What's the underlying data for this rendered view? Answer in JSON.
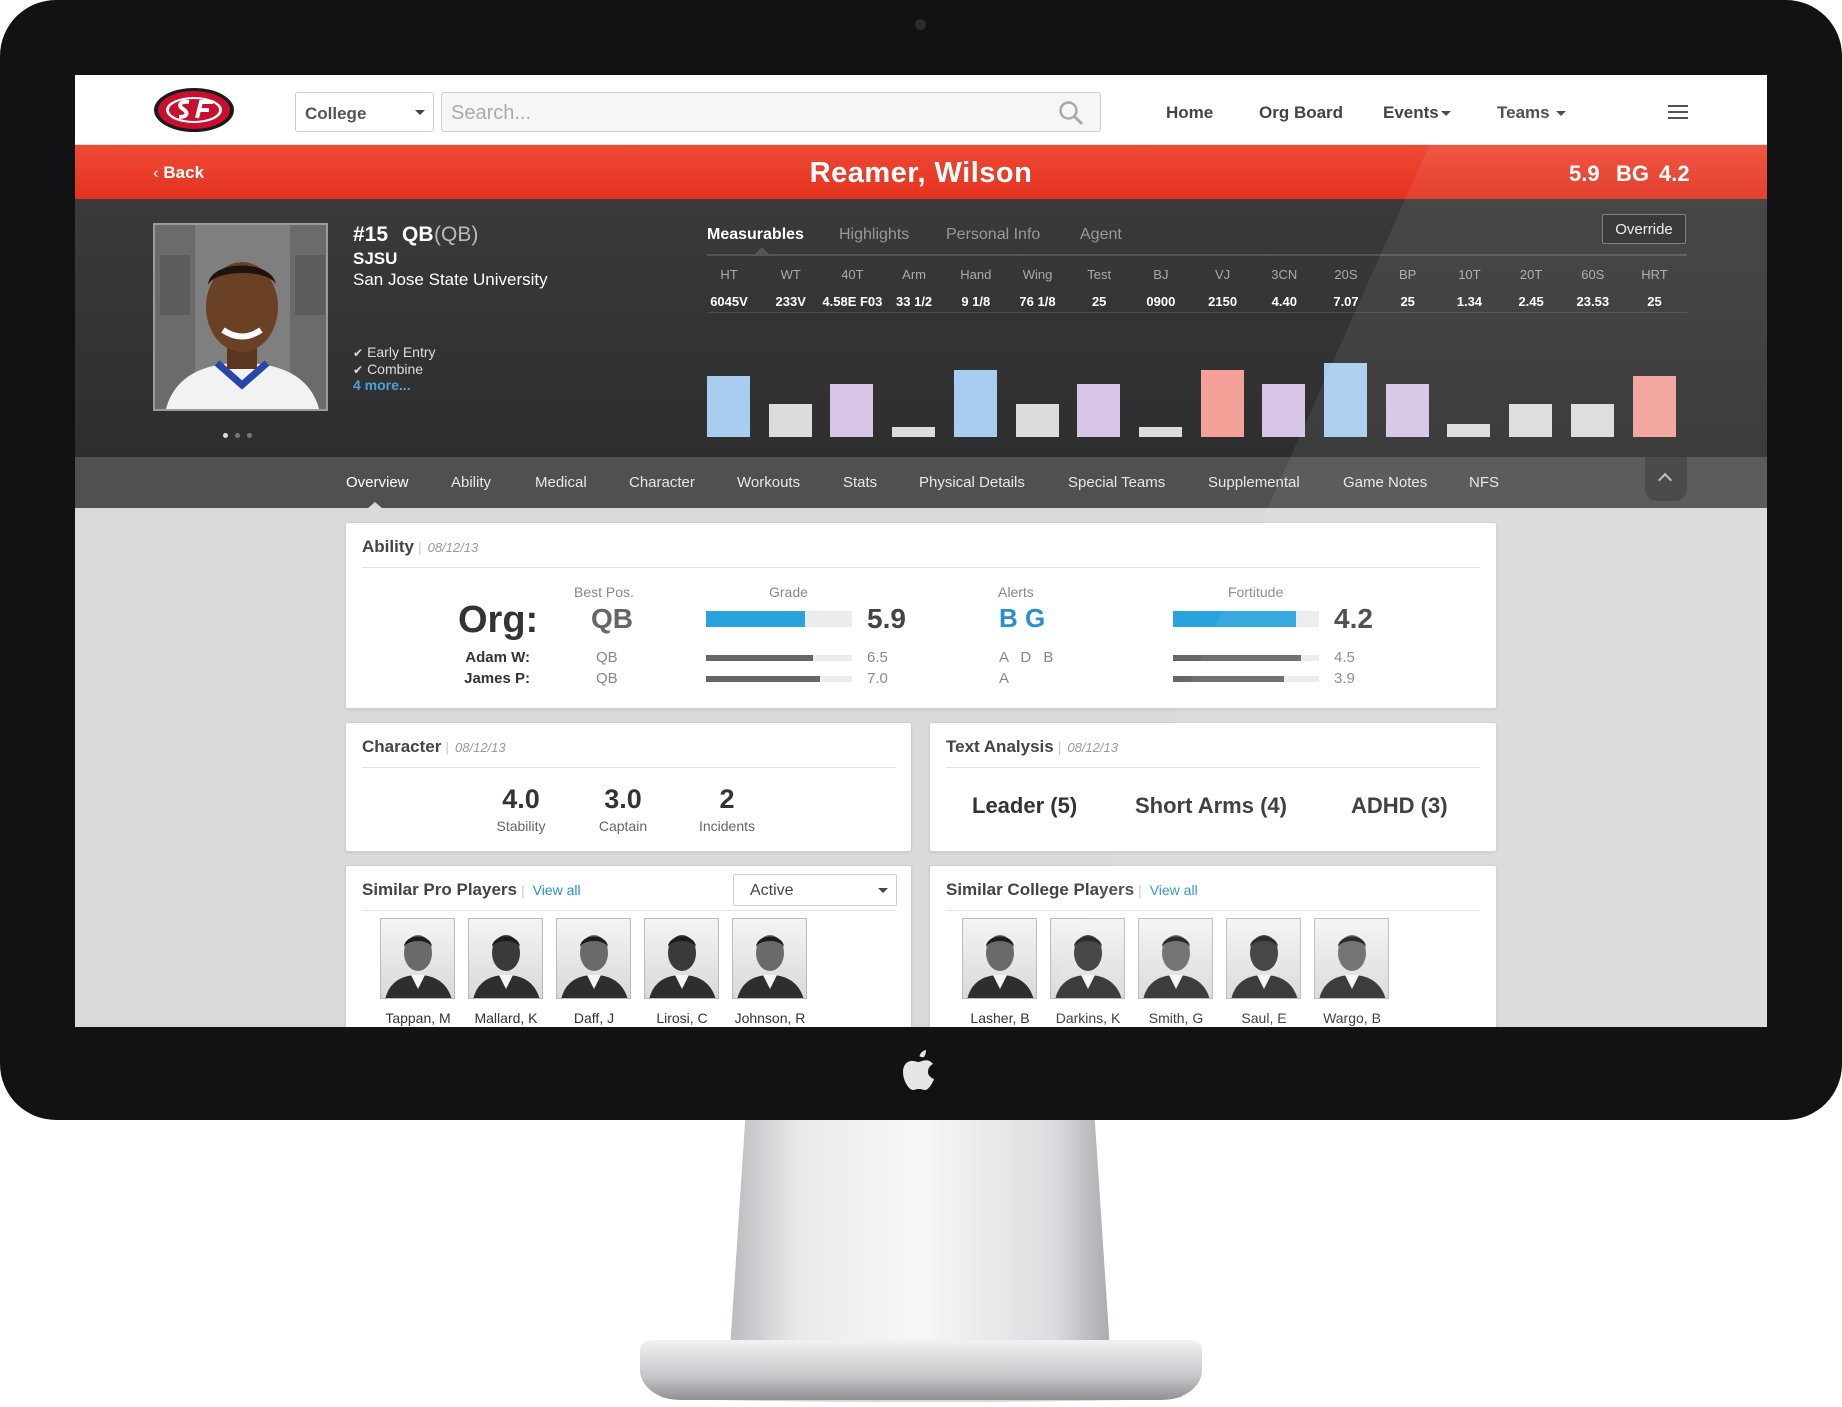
{
  "header": {
    "select": {
      "value": "College"
    },
    "search": {
      "placeholder": "Search..."
    },
    "nav": [
      "Home",
      "Org Board",
      "Events",
      "Teams"
    ]
  },
  "redbar": {
    "back": "Back",
    "player_name": "Reamer, Wilson",
    "grade": "5.9",
    "alerts": "BG",
    "fortitude": "4.2"
  },
  "profile": {
    "number": "#15",
    "position": "QB",
    "position_full": "(QB)",
    "school_abbr": "SJSU",
    "school": "San Jose State University",
    "tags": [
      "Early Entry",
      "Combine"
    ],
    "more": "4 more..."
  },
  "measure_tabs": [
    "Measurables",
    "Highlights",
    "Personal Info",
    "Agent"
  ],
  "override": "Override",
  "measurables": [
    {
      "label": "HT",
      "value": "6045V",
      "level": 0.82,
      "color": "#a8cdf0"
    },
    {
      "label": "WT",
      "value": "233V",
      "level": 0.45,
      "color": "#dcdcdc"
    },
    {
      "label": "40T",
      "value": "4.58E F03",
      "level": 0.72,
      "color": "#d6c5e6"
    },
    {
      "label": "Arm",
      "value": "33 1/2",
      "level": 0.13,
      "color": "#dcdcdc"
    },
    {
      "label": "Hand",
      "value": "9 1/8",
      "level": 0.9,
      "color": "#a8cdf0"
    },
    {
      "label": "Wing",
      "value": "76 1/8",
      "level": 0.45,
      "color": "#dcdcdc"
    },
    {
      "label": "Test",
      "value": "25",
      "level": 0.72,
      "color": "#d6c5e6"
    },
    {
      "label": "BJ",
      "value": "0900",
      "level": 0.13,
      "color": "#dcdcdc"
    },
    {
      "label": "VJ",
      "value": "2150",
      "level": 0.9,
      "color": "#f4a199"
    },
    {
      "label": "3CN",
      "value": "4.40",
      "level": 0.72,
      "color": "#d6c5e6"
    },
    {
      "label": "20S",
      "value": "7.07",
      "level": 1.0,
      "color": "#a8cdf0"
    },
    {
      "label": "BP",
      "value": "25",
      "level": 0.72,
      "color": "#d6c5e6"
    },
    {
      "label": "10T",
      "value": "1.34",
      "level": 0.18,
      "color": "#dcdcdc"
    },
    {
      "label": "20T",
      "value": "2.45",
      "level": 0.45,
      "color": "#dcdcdc"
    },
    {
      "label": "60S",
      "value": "23.53",
      "level": 0.45,
      "color": "#dcdcdc"
    },
    {
      "label": "HRT",
      "value": "25",
      "level": 0.82,
      "color": "#f4a199"
    }
  ],
  "sub_tabs": [
    "Overview",
    "Ability",
    "Medical",
    "Character",
    "Workouts",
    "Stats",
    "Physical  Details",
    "Special  Teams",
    "Supplemental",
    "Game  Notes",
    "NFS"
  ],
  "ability": {
    "title": "Ability",
    "date": "08/12/13",
    "col_best_pos": "Best Pos.",
    "col_grade": "Grade",
    "col_alerts": "Alerts",
    "col_fortitude": "Fortitude",
    "org_label": "Org:",
    "org": {
      "best_pos": "QB",
      "grade": "5.9",
      "grade_level": 0.68,
      "alerts": "B G",
      "fortitude": "4.2",
      "fortitude_level": 0.84
    },
    "raters": [
      {
        "name": "Adam W:",
        "best_pos": "QB",
        "grade": "6.5",
        "grade_level": 0.73,
        "alerts": "A D B",
        "fortitude": "4.5",
        "fortitude_level": 0.88
      },
      {
        "name": "James P:",
        "best_pos": "QB",
        "grade": "7.0",
        "grade_level": 0.78,
        "alerts": "A",
        "fortitude": "3.9",
        "fortitude_level": 0.76
      }
    ]
  },
  "character": {
    "title": "Character",
    "date": "08/12/13",
    "stats": [
      {
        "value": "4.0",
        "label": "Stability"
      },
      {
        "value": "3.0",
        "label": "Captain"
      },
      {
        "value": "2",
        "label": "Incidents"
      }
    ]
  },
  "text_analysis": {
    "title": "Text Analysis",
    "date": "08/12/13",
    "terms": [
      "Leader (5)",
      "Short Arms (4)",
      "ADHD (3)"
    ]
  },
  "similar_pro": {
    "title": "Similar Pro Players",
    "view_all": "View all",
    "filter": "Active",
    "players": [
      "Tappan, M",
      "Mallard, K",
      "Daff, J",
      "Lirosi, C",
      "Johnson, R"
    ]
  },
  "similar_college": {
    "title": "Similar College Players",
    "view_all": "View all",
    "players": [
      "Lasher, B",
      "Darkins, K",
      "Smith, G",
      "Saul, E",
      "Wargo, B"
    ]
  },
  "colors": {
    "accent_red": "#e63a26",
    "grade_blue": "#29a3dc",
    "link_blue": "#2a8fd1"
  }
}
